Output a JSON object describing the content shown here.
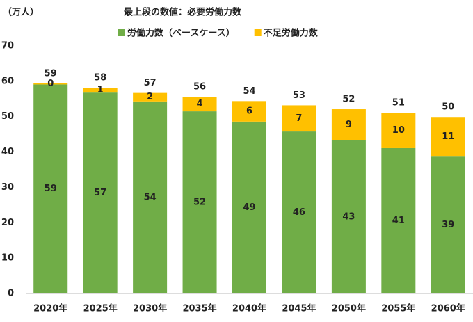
{
  "chart_data": {
    "type": "stacked_bar",
    "y_label": "（万人）",
    "annotation": "最上段の数値：必要労働力数",
    "categories": [
      "2020年",
      "2025年",
      "2030年",
      "2035年",
      "2040年",
      "2045年",
      "2050年",
      "2055年",
      "2060年"
    ],
    "series": [
      {
        "name": "労働力数（ベースケース）",
        "color": "#70ad47",
        "label_color": "#222222",
        "values": [
          59.1,
          56.8,
          54.3,
          51.5,
          48.6,
          45.8,
          43.3,
          41.1,
          38.7
        ],
        "value_labels": [
          "59",
          "57",
          "54",
          "52",
          "49",
          "46",
          "43",
          "41",
          "39"
        ]
      },
      {
        "name": "不足労働力数",
        "color": "#ffc000",
        "label_color": "#c00000",
        "values": [
          0.3,
          1.4,
          2.4,
          4.1,
          5.8,
          7.4,
          8.8,
          10.0,
          11.2
        ],
        "value_labels": [
          "0",
          "1",
          "2",
          "4",
          "6",
          "7",
          "9",
          "10",
          "11"
        ]
      }
    ],
    "totals": [
      59,
      58,
      57,
      56,
      54,
      53,
      52,
      51,
      50
    ],
    "ylim": [
      0,
      70
    ],
    "yticks": [
      0,
      10,
      20,
      30,
      40,
      50,
      60,
      70
    ],
    "grid": false
  }
}
